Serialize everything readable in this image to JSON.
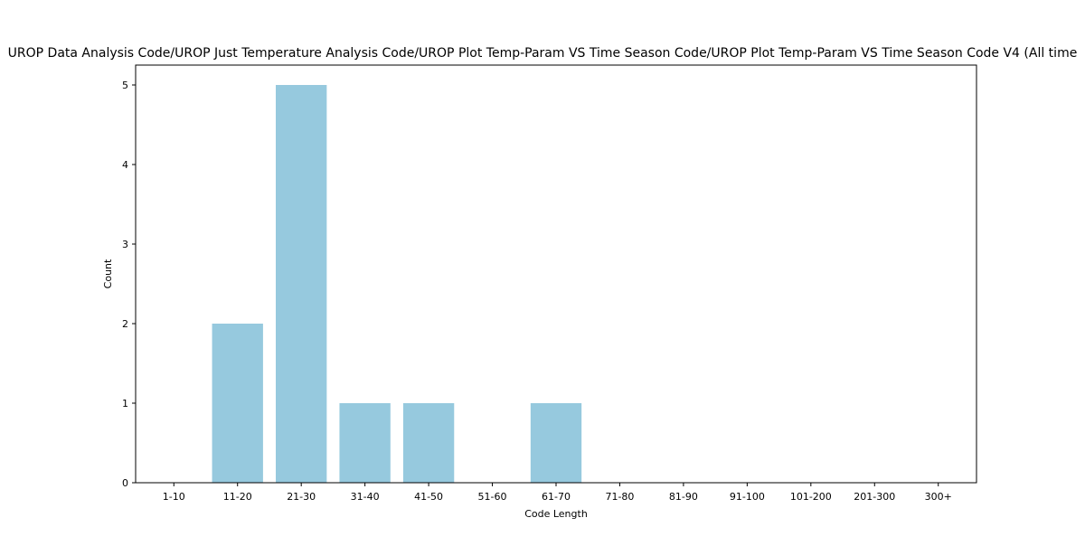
{
  "chart_data": {
    "type": "bar",
    "title": "UROP Data Analysis Code/UROP Just Temperature Analysis Code/UROP Plot Temp-Param VS Time Season Code/UROP Plot Temp-Param VS Time Season Code V4 (All time",
    "xlabel": "Code Length",
    "ylabel": "Count",
    "categories": [
      "1-10",
      "11-20",
      "21-30",
      "31-40",
      "41-50",
      "51-60",
      "61-70",
      "71-80",
      "81-90",
      "91-100",
      "101-200",
      "201-300",
      "300+"
    ],
    "values": [
      0,
      2,
      5,
      1,
      1,
      0,
      1,
      0,
      0,
      0,
      0,
      0,
      0
    ],
    "ylim": [
      0,
      5.25
    ],
    "yticks": [
      0,
      1,
      2,
      3,
      4,
      5
    ],
    "bar_color": "#96c9de",
    "grid": false,
    "legend": "none"
  }
}
